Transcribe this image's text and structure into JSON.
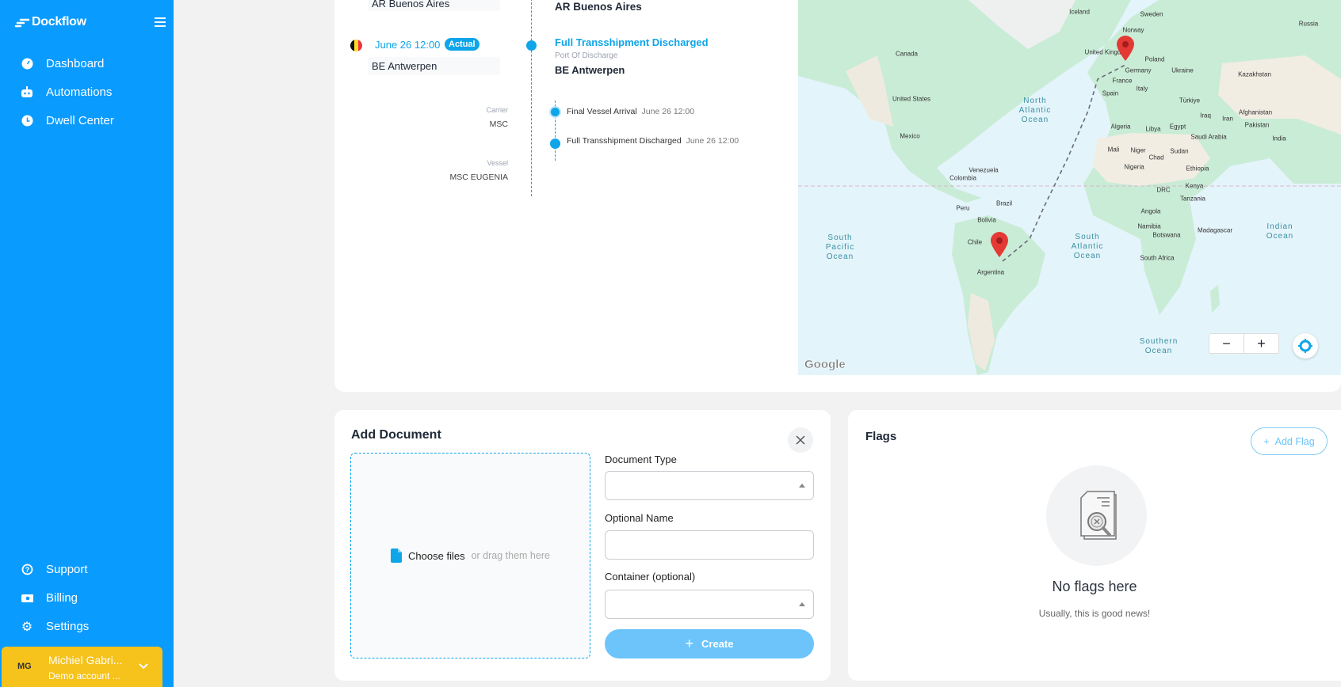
{
  "sidebar": {
    "logo": "Dockflow",
    "items": [
      {
        "label": "Dashboard",
        "icon": "gauge-icon"
      },
      {
        "label": "Automations",
        "icon": "robot-icon"
      },
      {
        "label": "Dwell Center",
        "icon": "clock-icon"
      }
    ],
    "bottom_items": [
      {
        "label": "Support",
        "icon": "question-circle-icon"
      },
      {
        "label": "Billing",
        "icon": "money-bill-icon"
      },
      {
        "label": "Settings",
        "icon": "gear-icon"
      }
    ],
    "user": {
      "initials": "MG",
      "name": "Michiel Gabri...",
      "account": "Demo account ..."
    }
  },
  "timeline": {
    "origin_left": "AR Buenos Aires",
    "origin_right": "AR Buenos Aires",
    "discharge": {
      "date": "June 26 12:00",
      "badge": "Actual",
      "location_left": "BE Antwerpen",
      "title": "Full Transshipment Discharged",
      "subtitle": "Port Of Discharge",
      "location_right": "BE Antwerpen"
    },
    "carrier_label": "Carrier",
    "carrier": "MSC",
    "vessel_label": "Vessel",
    "vessel": "MSC EUGENIA",
    "events": [
      {
        "name": "Final Vessel Arrival",
        "date": "June 26 12:00"
      },
      {
        "name": "Full Transshipment Discharged",
        "date": "June 26 12:00"
      }
    ]
  },
  "map": {
    "labels": [
      "Iceland",
      "Sweden",
      "Norway",
      "Russia",
      "United Kingdom",
      "Canada",
      "Poland",
      "Germany",
      "Ukraine",
      "Kazakhstan",
      "France",
      "Italy",
      "Spain",
      "United States",
      "Türkiye",
      "Iraq",
      "Iran",
      "Afghanistan",
      "Pakistan",
      "Algeria",
      "Libya",
      "Egypt",
      "Saudi Arabia",
      "India",
      "Mexico",
      "Mali",
      "Niger",
      "Sudan",
      "Chad",
      "Nigeria",
      "Ethiopia",
      "Venezuela",
      "Colombia",
      "Kenya",
      "DRC",
      "Tanzania",
      "Brazil",
      "Peru",
      "Angola",
      "Bolivia",
      "Namibia",
      "Madagascar",
      "Botswana",
      "Chile",
      "South Africa",
      "Argentina"
    ],
    "oceans": [
      "North Atlantic Ocean",
      "South Pacific Ocean",
      "South Atlantic Ocean",
      "Indian Ocean",
      "Southern Ocean"
    ],
    "attribution": "Google",
    "zoom_out": "−",
    "zoom_in": "+"
  },
  "add_document": {
    "title": "Add Document",
    "choose_files": "Choose files",
    "drag_hint": "or drag them here",
    "document_type_label": "Document Type",
    "document_type_value": "",
    "optional_name_label": "Optional Name",
    "optional_name_value": "",
    "container_label": "Container (optional)",
    "container_value": "",
    "create_label": "Create"
  },
  "flags": {
    "title": "Flags",
    "add_label": "Add Flag",
    "empty_title": "No flags here",
    "empty_subtitle": "Usually, this is good news!"
  },
  "colors": {
    "sidebar": "#0a9bff",
    "accent": "#0ea5e9",
    "user_card": "#f6c21c",
    "pin": "#e53935"
  }
}
